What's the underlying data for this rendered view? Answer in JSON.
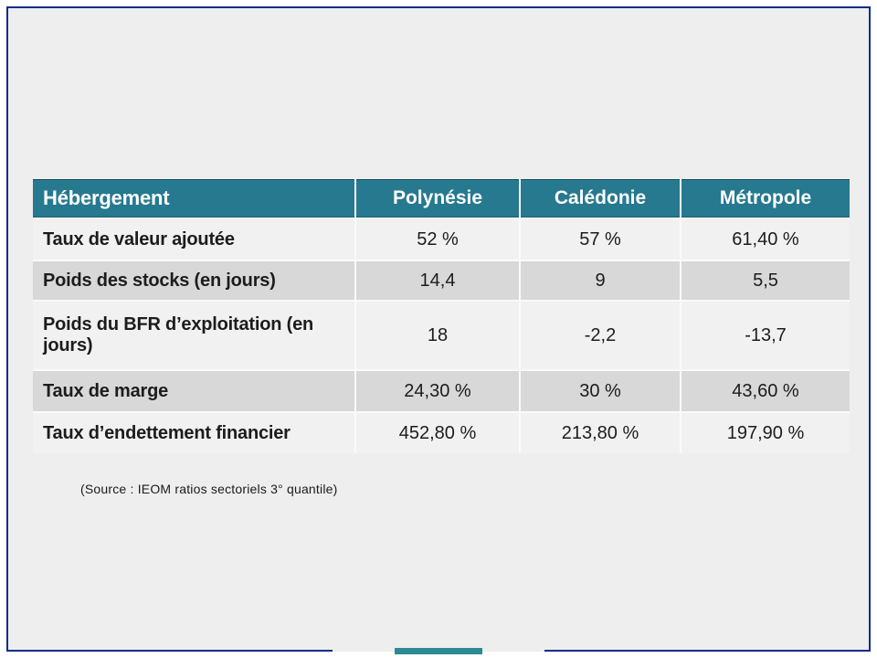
{
  "slide": {
    "background_color": "#eeeeee",
    "frame_border_color": "#0d2c8a",
    "accent_teal": "#26798f",
    "footer_bar_color": "#2b8a92"
  },
  "table": {
    "header": {
      "title": "Hébergement",
      "columns": [
        "Polynésie",
        "Calédonie",
        "Métropole"
      ]
    },
    "rows": [
      {
        "label": "Taux de valeur ajoutée",
        "values": [
          "52 %",
          "57 %",
          "61,40 %"
        ]
      },
      {
        "label": "Poids des stocks (en jours)",
        "values": [
          "14,4",
          "9",
          "5,5"
        ]
      },
      {
        "label": "Poids du BFR d’exploitation (en jours)",
        "values": [
          "18",
          "-2,2",
          "-13,7"
        ]
      },
      {
        "label": "Taux de marge",
        "values": [
          "24,30 %",
          "30 %",
          "43,60 %"
        ]
      },
      {
        "label": "Taux d’endettement financier",
        "values": [
          "452,80 %",
          "213,80 %",
          "197,90 %"
        ]
      }
    ]
  },
  "source_note": "(Source : IEOM ratios sectoriels 3° quantile)"
}
